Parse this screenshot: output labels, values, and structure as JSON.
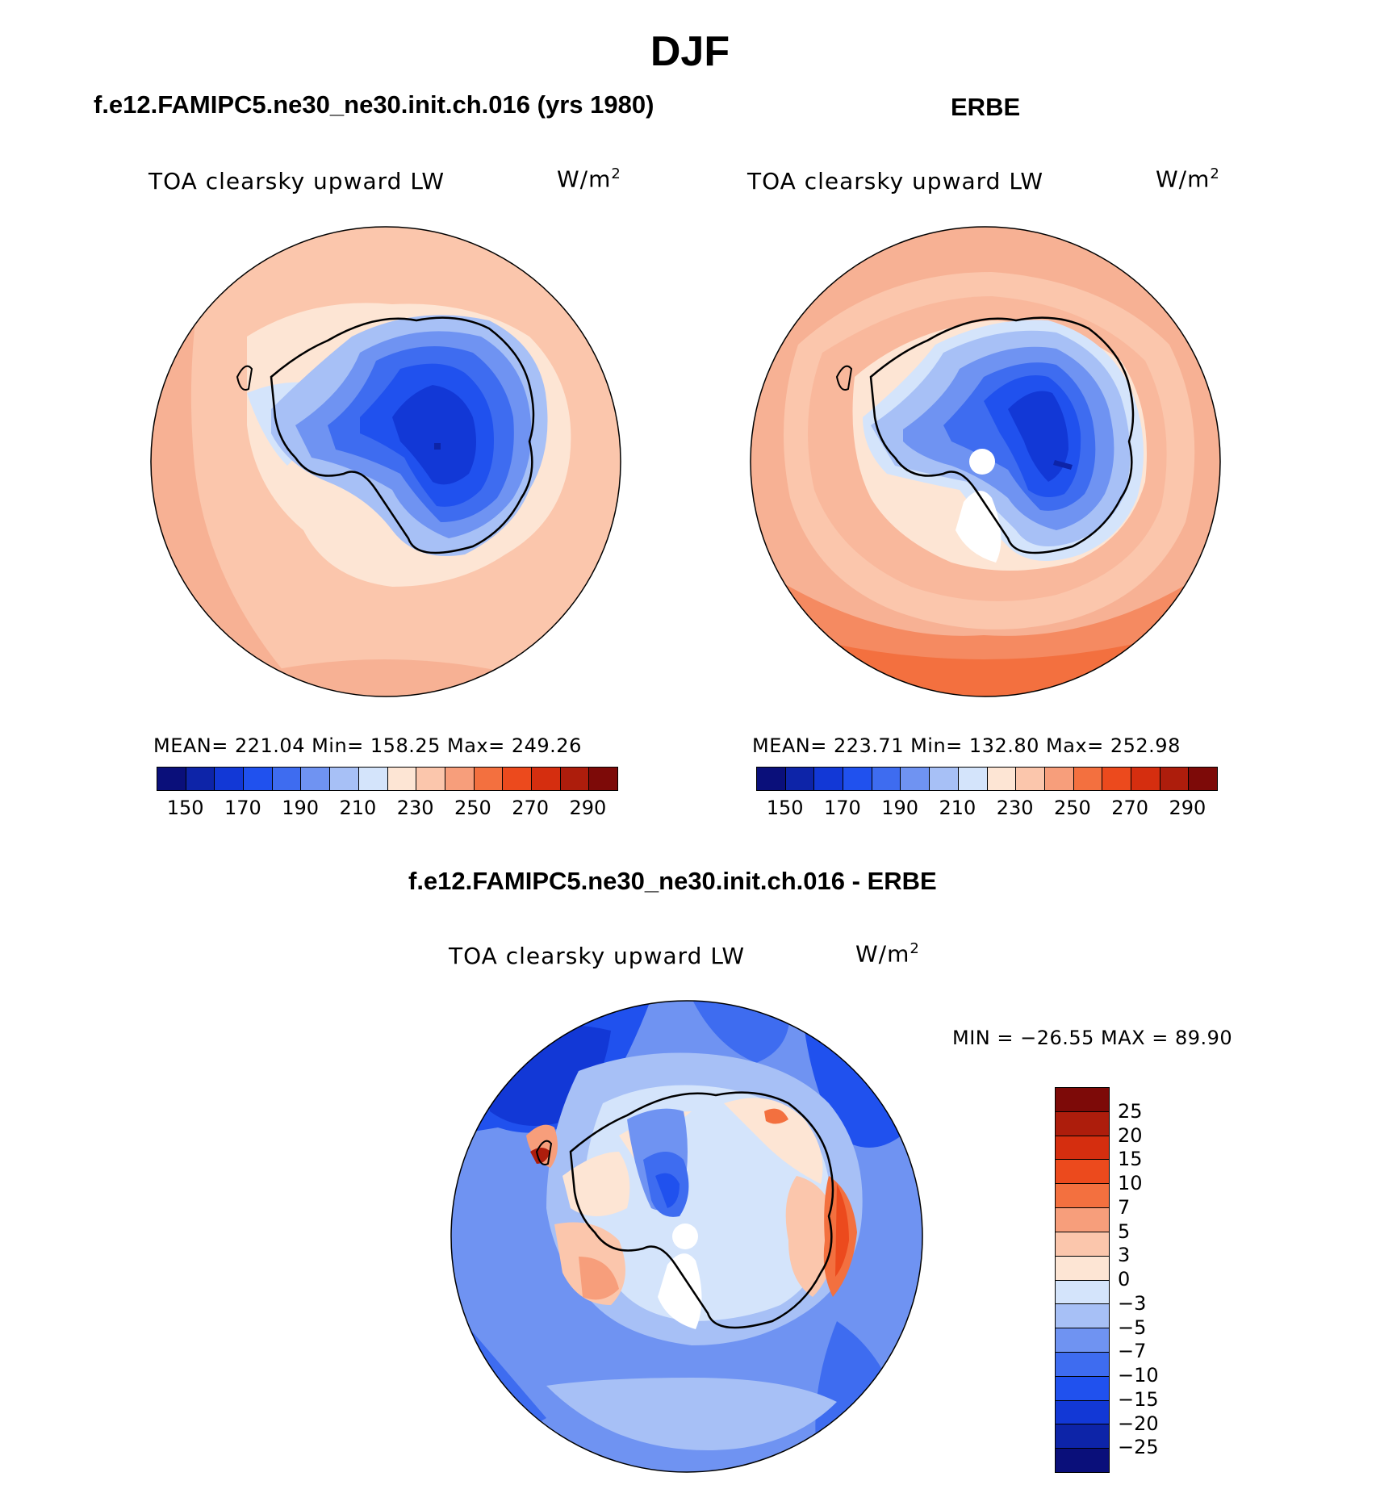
{
  "figure": {
    "title": "DJF"
  },
  "panels": {
    "model": {
      "title": "f.e12.FAMIPC5.ne30_ne30.init.ch.016 (yrs 1980)",
      "field": "TOA clearsky upward LW",
      "units_base": "W/m",
      "units_exp": "2",
      "stats": "MEAN= 221.04   Min= 158.25   Max= 249.26"
    },
    "obs": {
      "title": "ERBE",
      "field": "TOA clearsky upward LW",
      "units_base": "W/m",
      "units_exp": "2",
      "stats": "MEAN= 223.71   Min= 132.80   Max= 252.98"
    },
    "diff": {
      "title": "f.e12.FAMIPC5.ne30_ne30.init.ch.016 - ERBE",
      "field": "TOA clearsky upward LW",
      "units_base": "W/m",
      "units_exp": "2",
      "stats": "MIN = −26.55 MAX =   89.90"
    }
  },
  "colorbars": {
    "absolute": {
      "colors": [
        "#0a0f7a",
        "#0d24a8",
        "#1238d6",
        "#2051ee",
        "#3e6cf0",
        "#6f93f2",
        "#a7c0f6",
        "#d4e4fb",
        "#fde5d4",
        "#fbc6ac",
        "#f79e7b",
        "#f3703f",
        "#ec4a1d",
        "#d52e0f",
        "#ad1d0c",
        "#7d0a08"
      ],
      "ticks": [
        "150",
        "170",
        "190",
        "210",
        "230",
        "250",
        "270",
        "290"
      ]
    },
    "difference": {
      "colors": [
        "#7d0a08",
        "#ad1d0c",
        "#d52e0f",
        "#ec4a1d",
        "#f3703f",
        "#f79e7b",
        "#fbc6ac",
        "#fde5d4",
        "#d4e4fb",
        "#a7c0f6",
        "#6f93f2",
        "#3e6cf0",
        "#2051ee",
        "#1238d6",
        "#0d24a8",
        "#0a0f7a"
      ],
      "ticks": [
        "25",
        "20",
        "15",
        "10",
        "7",
        "5",
        "3",
        "0",
        "−3",
        "−5",
        "−7",
        "−10",
        "−15",
        "−20",
        "−25"
      ]
    }
  }
}
